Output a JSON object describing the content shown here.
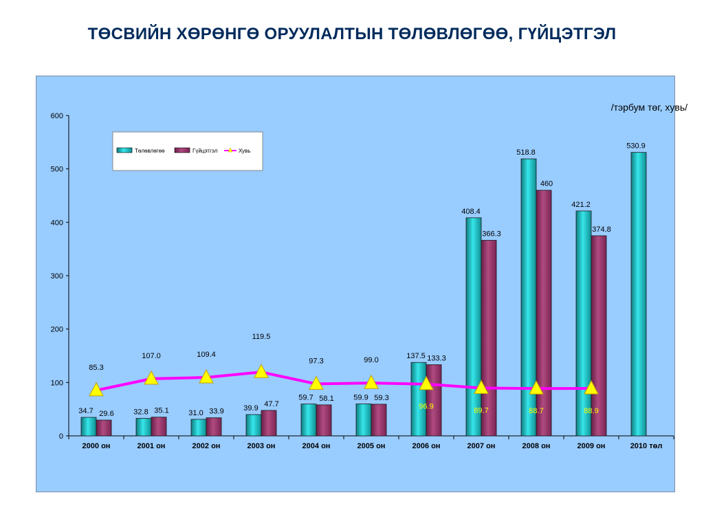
{
  "title": "ТӨСВИЙН ХӨРӨНГӨ ОРУУЛАЛТЫН ТӨЛӨВЛӨГӨӨ, ГҮЙЦЭТГЭЛ",
  "chart_data": {
    "type": "bar",
    "unit_note": "/тэрбум төг, хувь/",
    "categories": [
      "2000 он",
      "2001 он",
      "2002 он",
      "2003 он",
      "2004 он",
      "2005 он",
      "2006 он",
      "2007 он",
      "2008 он",
      "2009 он",
      "2010 төл"
    ],
    "ylim": [
      0,
      600
    ],
    "yticks": [
      0,
      100,
      200,
      300,
      400,
      500,
      600
    ],
    "grid": false,
    "legend_position": "top-left",
    "series": [
      {
        "name": "Төлөвлөгөө",
        "type": "bar",
        "color": "#22c4c8",
        "values": [
          34.7,
          32.8,
          31.0,
          39.9,
          59.7,
          59.9,
          137.5,
          408.4,
          518.8,
          421.2,
          530.9
        ],
        "labels": [
          "34.7",
          "32.8",
          "31.0",
          "39.9",
          "59.7",
          "59.9",
          "137.5",
          "408.4",
          "518.8",
          "421.2",
          "530.9"
        ]
      },
      {
        "name": "Гүйцэтгэл",
        "type": "bar",
        "color": "#993366",
        "values": [
          29.6,
          35.1,
          33.9,
          47.7,
          58.1,
          59.3,
          133.3,
          366.3,
          460,
          374.8,
          null
        ],
        "labels": [
          "29.6",
          "35.1",
          "33.9",
          "47.7",
          "58.1",
          "59.3",
          "133.3",
          "366.3",
          "460",
          "374.8",
          ""
        ]
      },
      {
        "name": "Хувь",
        "type": "line",
        "color": "#ff00ff",
        "marker_color": "#ffff00",
        "values": [
          85.3,
          107.0,
          109.4,
          119.5,
          97.3,
          99.0,
          96.9,
          89.7,
          88.7,
          88.9,
          null
        ],
        "labels": [
          "85.3",
          "107.0",
          "109.4",
          "119.5",
          "97.3",
          "99.0",
          "96.9",
          "89.7",
          "88.7",
          "88.9",
          ""
        ]
      }
    ]
  }
}
